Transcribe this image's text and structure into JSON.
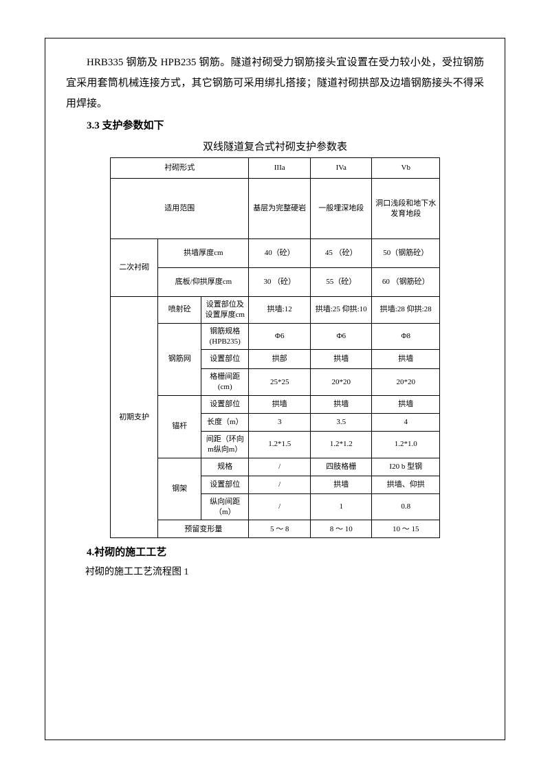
{
  "intro_paragraph": "HRB335 钢筋及 HPB235 钢筋。隧道衬砌受力钢筋接头宜设置在受力较小处，受拉钢筋宜采用套筒机械连接方式，其它钢筋可采用绑扎搭接；隧道衬砌拱部及边墙钢筋接头不得采用焊接。",
  "heading_3_3": "3.3 支护参数如下",
  "table_title": "双线隧道复合式衬砌支护参数表",
  "heading_4": "4.衬砌的施工工艺",
  "subtext_4": "衬砌的施工工艺流程图 1",
  "table": {
    "header": {
      "form_label": "衬砌形式",
      "col_IIIa": "IIIa",
      "col_IVa": "IVa",
      "col_Vb": "Vb"
    },
    "applicable": {
      "label": "适用范围",
      "IIIa": "基层为完整硬岩",
      "IVa": "一般埋深地段",
      "Vb": "洞口浅段和地下水发育地段"
    },
    "secondary_lining": {
      "label": "二次衬砌",
      "arch_wall_label": "拱墙厚度cm",
      "arch_wall_IIIa": "40（砼）",
      "arch_wall_IVa": "45 （砼）",
      "arch_wall_Vb": "50（钢筋砼）",
      "floor_label": "底板/仰拱厚度cm",
      "floor_IIIa": "30 （砼）",
      "floor_IVa": "55（砼）",
      "floor_Vb": "60 （钢筋砼）"
    },
    "initial_support": {
      "label": "初期支护",
      "shotcrete": {
        "label": "喷射砼",
        "pos_thick_label": "设置部位及设置厚度cm",
        "IIIa": "拱墙:12",
        "IVa": "拱墙:25 仰拱:10",
        "Vb": "拱墙:28 仰拱:28"
      },
      "mesh": {
        "label": "钢筋网",
        "spec_label": "钢筋规格(HPB235)",
        "spec_IIIa": "Φ6",
        "spec_IVa": "Φ6",
        "spec_Vb": "Φ8",
        "pos_label": "设置部位",
        "pos_IIIa": "拱部",
        "pos_IVa": "拱墙",
        "pos_Vb": "拱墙",
        "grid_label": "格栅间距(cm)",
        "grid_IIIa": "25*25",
        "grid_IVa": "20*20",
        "grid_Vb": "20*20"
      },
      "anchor": {
        "label": "锚杆",
        "pos_label": "设置部位",
        "pos_IIIa": "拱墙",
        "pos_IVa": "拱墙",
        "pos_Vb": "拱墙",
        "len_label": "长度（m）",
        "len_IIIa": "3",
        "len_IVa": "3.5",
        "len_Vb": "4",
        "spacing_label": "间距（环向m纵向m）",
        "spacing_IIIa": "1.2*1.5",
        "spacing_IVa": "1.2*1.2",
        "spacing_Vb": "1.2*1.0"
      },
      "steel_frame": {
        "label": "钢架",
        "spec_label": "规格",
        "spec_IIIa": "/",
        "spec_IVa": "四肢格栅",
        "spec_Vb": "I20 b 型钢",
        "pos_label": "设置部位",
        "pos_IIIa": "/",
        "pos_IVa": "拱墙",
        "pos_Vb": "拱墙、仰拱",
        "spacing_label": "纵向间距（m）",
        "spacing_IIIa": "/",
        "spacing_IVa": "1",
        "spacing_Vb": "0.8"
      },
      "reserve": {
        "label": "预留变形量",
        "IIIa": "5 ～ 8",
        "IVa": "8  ～ 10",
        "Vb": "10  ～ 15"
      }
    }
  }
}
